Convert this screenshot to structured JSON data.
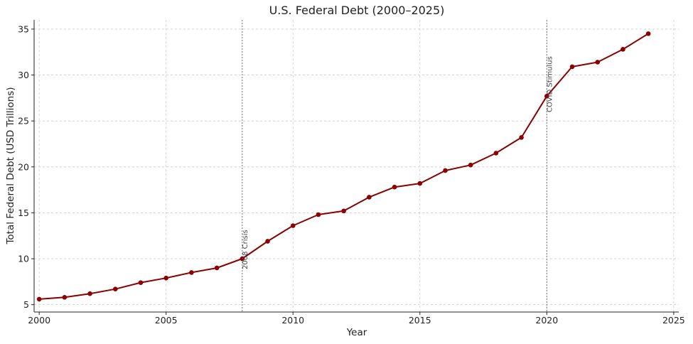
{
  "chart_data": {
    "type": "line",
    "title": "U.S. Federal Debt (2000–2025)",
    "xlabel": "Year",
    "ylabel": "Total Federal Debt (USD Trillions)",
    "xlim": [
      1999.8,
      2025.2
    ],
    "ylim": [
      4.2,
      36.0
    ],
    "x_ticks": [
      2000,
      2005,
      2010,
      2015,
      2020,
      2025
    ],
    "y_ticks": [
      5,
      10,
      15,
      20,
      25,
      30,
      35
    ],
    "grid": true,
    "colors": {
      "line": "#8b0000",
      "vline": "#888888",
      "grid": "#cccccc",
      "axis": "#222222"
    },
    "series": [
      {
        "x": [
          2000,
          2001,
          2002,
          2003,
          2004,
          2005,
          2006,
          2007,
          2008,
          2009,
          2010,
          2011,
          2012,
          2013,
          2014,
          2015,
          2016,
          2017,
          2018,
          2019,
          2020,
          2021,
          2022,
          2023,
          2024
        ],
        "values": [
          5.6,
          5.8,
          6.2,
          6.7,
          7.4,
          7.9,
          8.5,
          9.0,
          10.0,
          11.9,
          13.6,
          14.8,
          15.2,
          16.7,
          17.8,
          18.2,
          19.6,
          20.2,
          21.5,
          23.2,
          27.7,
          30.9,
          31.4,
          32.8,
          34.5
        ]
      }
    ],
    "annotations": [
      {
        "x": 2008,
        "label": "2008 Crisis"
      },
      {
        "x": 2020,
        "label": "COVID Stimulus"
      }
    ]
  }
}
